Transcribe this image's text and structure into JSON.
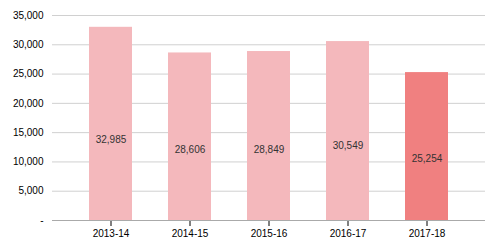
{
  "chart_data": {
    "type": "bar",
    "categories": [
      "2013-14",
      "2014-15",
      "2015-16",
      "2016-17",
      "2017-18"
    ],
    "values": [
      32985,
      28606,
      28849,
      30549,
      25254
    ],
    "colors": [
      "#f4b8bc",
      "#f4b8bc",
      "#f4b8bc",
      "#f4b8bc",
      "#f08080"
    ],
    "data_labels": true,
    "value_labels": [
      "32,985",
      "28,606",
      "28,849",
      "30,549",
      "25,254"
    ],
    "ylim": [
      0,
      35000
    ],
    "yticks": [
      {
        "value": 0,
        "label": "-"
      },
      {
        "value": 5000,
        "label": "5,000"
      },
      {
        "value": 10000,
        "label": "10,000"
      },
      {
        "value": 15000,
        "label": "15,000"
      },
      {
        "value": 20000,
        "label": "20,000"
      },
      {
        "value": 25000,
        "label": "25,000"
      },
      {
        "value": 30000,
        "label": "30,000"
      },
      {
        "value": 35000,
        "label": "35,000"
      }
    ],
    "grid": true
  }
}
